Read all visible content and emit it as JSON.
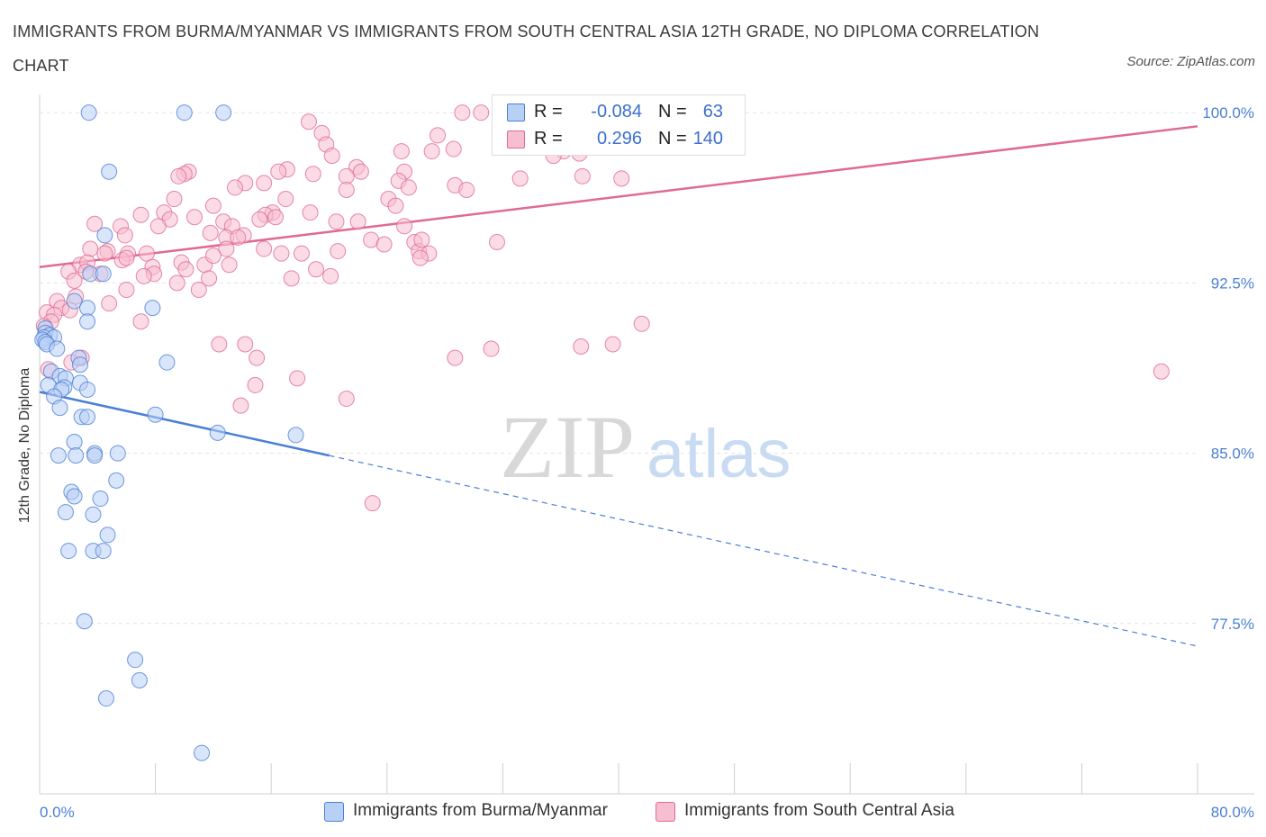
{
  "title": "IMMIGRANTS FROM BURMA/MYANMAR VS IMMIGRANTS FROM SOUTH CENTRAL ASIA 12TH GRADE, NO DIPLOMA CORRELATION CHART",
  "source": "Source: ZipAtlas.com",
  "watermark": {
    "zip": "ZIP",
    "atlas": "atlas"
  },
  "colors": {
    "blue": "#4a7fd6",
    "blue_fill": "#b9d0f5",
    "pink": "#e06a93",
    "pink_fill": "#f7bdd0"
  },
  "legend_top": {
    "rows": [
      {
        "r_label": "R =",
        "r_value": "-0.084",
        "n_label": "N =",
        "n_value": "63"
      },
      {
        "r_label": "R =",
        "r_value": "0.296",
        "n_label": "N =",
        "n_value": "140"
      }
    ]
  },
  "chart_data": {
    "type": "scatter",
    "title": "IMMIGRANTS FROM BURMA/MYANMAR VS IMMIGRANTS FROM SOUTH CENTRAL ASIA 12TH GRADE, NO DIPLOMA CORRELATION CHART",
    "xlabel": "",
    "ylabel": "12th Grade, No Diploma",
    "xlim": [
      0,
      80
    ],
    "ylim": [
      70,
      100.8
    ],
    "x_tick_labels": [
      "0.0%",
      "80.0%"
    ],
    "y_ticks": [
      {
        "value": 100.0,
        "label": "100.0%"
      },
      {
        "value": 92.5,
        "label": "92.5%"
      },
      {
        "value": 85.0,
        "label": "85.0%"
      },
      {
        "value": 77.5,
        "label": "77.5%"
      }
    ],
    "grid": true,
    "legend": "bottom",
    "series": [
      {
        "name": "Immigrants from Burma/Myanmar",
        "color": "#4a7fd6",
        "stats": {
          "R": -0.084,
          "N": 63
        },
        "trend": {
          "x0": 0,
          "y0": 87.7,
          "x_solid_end": 20,
          "x1": 80,
          "y1": 76.5
        },
        "points": [
          [
            3.4,
            100.0
          ],
          [
            10.0,
            100.0
          ],
          [
            12.7,
            100.0
          ],
          [
            4.8,
            97.4
          ],
          [
            4.5,
            94.6
          ],
          [
            3.5,
            92.9
          ],
          [
            4.4,
            92.9
          ],
          [
            2.4,
            91.7
          ],
          [
            7.8,
            91.4
          ],
          [
            3.3,
            91.4
          ],
          [
            3.3,
            90.8
          ],
          [
            0.4,
            90.5
          ],
          [
            0.4,
            90.3
          ],
          [
            0.7,
            90.2
          ],
          [
            0.3,
            90.1
          ],
          [
            1.0,
            90.1
          ],
          [
            0.2,
            90.0
          ],
          [
            0.4,
            89.9
          ],
          [
            0.5,
            89.8
          ],
          [
            1.2,
            89.6
          ],
          [
            2.7,
            89.2
          ],
          [
            0.8,
            88.6
          ],
          [
            2.8,
            88.9
          ],
          [
            8.8,
            89.0
          ],
          [
            1.4,
            88.4
          ],
          [
            1.8,
            88.3
          ],
          [
            0.6,
            88.0
          ],
          [
            1.7,
            87.9
          ],
          [
            1.5,
            87.8
          ],
          [
            2.8,
            88.1
          ],
          [
            3.3,
            87.8
          ],
          [
            1.0,
            87.5
          ],
          [
            1.4,
            87.0
          ],
          [
            2.9,
            86.6
          ],
          [
            8.0,
            86.7
          ],
          [
            3.3,
            86.6
          ],
          [
            12.3,
            85.9
          ],
          [
            17.7,
            85.8
          ],
          [
            2.4,
            85.5
          ],
          [
            1.3,
            84.9
          ],
          [
            2.5,
            84.9
          ],
          [
            3.8,
            85.0
          ],
          [
            3.8,
            84.9
          ],
          [
            5.4,
            85.0
          ],
          [
            5.3,
            83.8
          ],
          [
            2.2,
            83.3
          ],
          [
            4.2,
            83.0
          ],
          [
            2.4,
            83.1
          ],
          [
            1.8,
            82.4
          ],
          [
            3.7,
            82.3
          ],
          [
            4.7,
            81.4
          ],
          [
            2.0,
            80.7
          ],
          [
            3.7,
            80.7
          ],
          [
            4.4,
            80.7
          ],
          [
            3.1,
            77.6
          ],
          [
            6.6,
            75.9
          ],
          [
            6.9,
            75.0
          ],
          [
            4.6,
            74.2
          ],
          [
            11.2,
            71.8
          ]
        ]
      },
      {
        "name": "Immigrants from South Central Asia",
        "color": "#e06a93",
        "stats": {
          "R": 0.296,
          "N": 140
        },
        "trend": {
          "x0": 0,
          "y0": 93.2,
          "x1": 80,
          "y1": 99.4
        },
        "points": [
          [
            29.2,
            100.0
          ],
          [
            30.5,
            100.0
          ],
          [
            33.2,
            99.7
          ],
          [
            18.6,
            99.6
          ],
          [
            19.5,
            99.1
          ],
          [
            27.5,
            99.0
          ],
          [
            19.8,
            98.6
          ],
          [
            21.9,
            97.6
          ],
          [
            25.0,
            98.3
          ],
          [
            27.1,
            98.3
          ],
          [
            28.6,
            98.4
          ],
          [
            37.3,
            98.2
          ],
          [
            36.2,
            98.3
          ],
          [
            35.5,
            98.1
          ],
          [
            33.7,
            98.5
          ],
          [
            20.2,
            98.1
          ],
          [
            25.2,
            97.4
          ],
          [
            22.2,
            97.4
          ],
          [
            17.1,
            97.5
          ],
          [
            16.5,
            97.4
          ],
          [
            18.9,
            97.3
          ],
          [
            21.2,
            97.2
          ],
          [
            10.3,
            97.4
          ],
          [
            10.0,
            97.3
          ],
          [
            14.2,
            96.9
          ],
          [
            15.5,
            96.9
          ],
          [
            13.5,
            96.7
          ],
          [
            24.8,
            97.0
          ],
          [
            28.7,
            96.8
          ],
          [
            29.5,
            96.6
          ],
          [
            25.5,
            96.7
          ],
          [
            21.2,
            96.6
          ],
          [
            33.2,
            97.1
          ],
          [
            37.5,
            97.2
          ],
          [
            40.2,
            97.1
          ],
          [
            9.3,
            96.2
          ],
          [
            17.0,
            96.2
          ],
          [
            24.1,
            96.2
          ],
          [
            24.6,
            95.9
          ],
          [
            18.7,
            95.6
          ],
          [
            16.1,
            95.6
          ],
          [
            15.6,
            95.5
          ],
          [
            8.6,
            95.6
          ],
          [
            7.0,
            95.5
          ],
          [
            12.0,
            95.9
          ],
          [
            10.7,
            95.4
          ],
          [
            9.0,
            95.3
          ],
          [
            15.2,
            95.3
          ],
          [
            16.3,
            95.4
          ],
          [
            20.5,
            95.2
          ],
          [
            12.7,
            95.2
          ],
          [
            13.3,
            95.0
          ],
          [
            11.8,
            94.7
          ],
          [
            3.8,
            95.1
          ],
          [
            5.6,
            95.0
          ],
          [
            8.2,
            95.0
          ],
          [
            25.2,
            95.0
          ],
          [
            5.9,
            94.6
          ],
          [
            14.1,
            94.6
          ],
          [
            12.9,
            94.5
          ],
          [
            13.7,
            94.5
          ],
          [
            22.9,
            94.4
          ],
          [
            25.9,
            94.3
          ],
          [
            31.6,
            94.3
          ],
          [
            23.8,
            94.2
          ],
          [
            12.9,
            94.0
          ],
          [
            15.5,
            94.0
          ],
          [
            20.6,
            93.9
          ],
          [
            16.7,
            93.8
          ],
          [
            18.1,
            93.8
          ],
          [
            26.2,
            93.9
          ],
          [
            26.9,
            93.8
          ],
          [
            26.3,
            93.6
          ],
          [
            3.5,
            94.0
          ],
          [
            4.7,
            93.9
          ],
          [
            4.5,
            93.8
          ],
          [
            6.1,
            93.8
          ],
          [
            7.4,
            93.8
          ],
          [
            2.8,
            93.3
          ],
          [
            3.3,
            93.4
          ],
          [
            5.7,
            93.5
          ],
          [
            6.0,
            93.6
          ],
          [
            9.8,
            93.4
          ],
          [
            11.4,
            93.3
          ],
          [
            13.1,
            93.3
          ],
          [
            10.1,
            93.1
          ],
          [
            7.8,
            93.2
          ],
          [
            7.9,
            92.9
          ],
          [
            2.0,
            93.0
          ],
          [
            3.2,
            93.0
          ],
          [
            4.2,
            92.9
          ],
          [
            7.2,
            92.8
          ],
          [
            11.7,
            92.7
          ],
          [
            9.5,
            92.5
          ],
          [
            19.1,
            93.1
          ],
          [
            17.4,
            92.7
          ],
          [
            20.1,
            92.8
          ],
          [
            2.4,
            92.6
          ],
          [
            11.0,
            92.2
          ],
          [
            6.0,
            92.2
          ],
          [
            2.5,
            91.9
          ],
          [
            1.2,
            91.7
          ],
          [
            4.8,
            91.6
          ],
          [
            1.5,
            91.4
          ],
          [
            2.1,
            91.3
          ],
          [
            0.5,
            91.2
          ],
          [
            1.0,
            91.1
          ],
          [
            0.8,
            90.8
          ],
          [
            0.3,
            90.6
          ],
          [
            7.0,
            90.8
          ],
          [
            41.6,
            90.7
          ],
          [
            12.4,
            89.8
          ],
          [
            14.2,
            89.8
          ],
          [
            37.4,
            89.7
          ],
          [
            39.6,
            89.8
          ],
          [
            15.0,
            89.2
          ],
          [
            2.9,
            89.2
          ],
          [
            2.2,
            89.0
          ],
          [
            28.7,
            89.2
          ],
          [
            0.6,
            88.7
          ],
          [
            77.5,
            88.6
          ],
          [
            17.8,
            88.3
          ],
          [
            14.9,
            88.0
          ],
          [
            21.2,
            87.4
          ],
          [
            13.9,
            87.1
          ],
          [
            23.0,
            82.8
          ],
          [
            31.2,
            89.6
          ],
          [
            9.6,
            97.2
          ],
          [
            42.1,
            99.7
          ],
          [
            40.7,
            98.5
          ],
          [
            22.0,
            95.2
          ],
          [
            26.4,
            94.4
          ],
          [
            12.0,
            93.7
          ]
        ]
      }
    ]
  },
  "legend_bottom": [
    {
      "label": "Immigrants from Burma/Myanmar"
    },
    {
      "label": "Immigrants from South Central Asia"
    }
  ]
}
